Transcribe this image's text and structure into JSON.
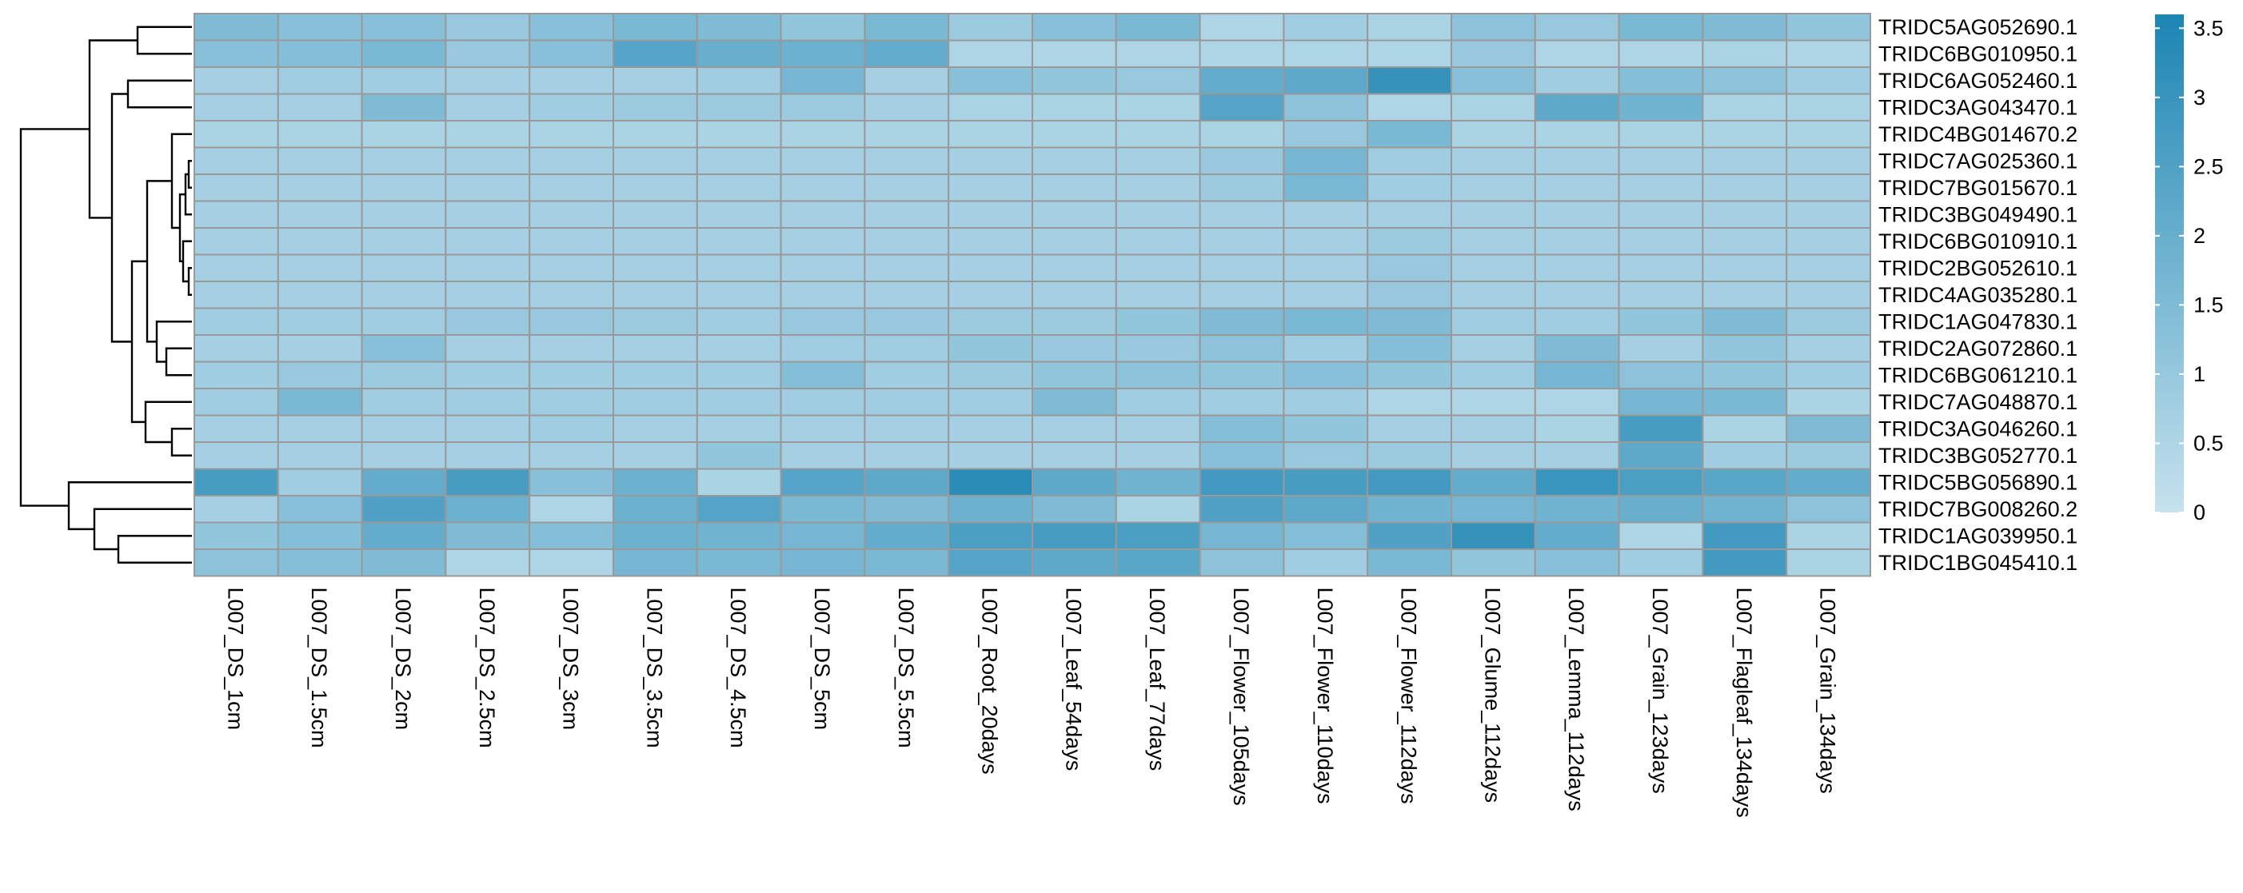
{
  "chart_data": {
    "type": "heatmap",
    "title": "",
    "columns": [
      "L007_DS_1cm",
      "L007_DS_1.5cm",
      "L007_DS_2cm",
      "L007_DS_2.5cm",
      "L007_DS_3cm",
      "L007_DS_3.5cm",
      "L007_DS_4.5cm",
      "L007_DS_5cm",
      "L007_DS_5.5cm",
      "L007_Root_20days",
      "L007_Leaf_54days",
      "L007_Leaf_77days",
      "L007_Flower_105days",
      "L007_Flower_110days",
      "L007_Flower_112days",
      "L007_Glume_112days",
      "L007_Lemma_112days",
      "L007_Grain_123days",
      "L007_Flagleaf_134days",
      "L007_Grain_134days"
    ],
    "rows": [
      "TRIDC5AG052690.1",
      "TRIDC6BG010950.1",
      "TRIDC6AG052460.1",
      "TRIDC3AG043470.1",
      "TRIDC4BG014670.2",
      "TRIDC7AG025360.1",
      "TRIDC7BG015670.1",
      "TRIDC3BG049490.1",
      "TRIDC6BG010910.1",
      "TRIDC2BG052610.1",
      "TRIDC4AG035280.1",
      "TRIDC1AG047830.1",
      "TRIDC2AG072860.1",
      "TRIDC6BG061210.1",
      "TRIDC7AG048870.1",
      "TRIDC3AG046260.1",
      "TRIDC3BG052770.1",
      "TRIDC5BG056890.1",
      "TRIDC7BG008260.2",
      "TRIDC1AG039950.1",
      "TRIDC1BG045410.1"
    ],
    "values": [
      [
        1.5,
        1.3,
        1.3,
        1.0,
        1.3,
        1.6,
        1.5,
        1.1,
        1.6,
        0.9,
        1.3,
        1.6,
        0.5,
        0.8,
        0.6,
        1.2,
        1.0,
        1.6,
        1.5,
        1.1
      ],
      [
        1.3,
        1.4,
        1.6,
        1.0,
        1.3,
        2.4,
        2.0,
        1.9,
        2.1,
        0.5,
        0.5,
        0.5,
        0.5,
        0.5,
        0.5,
        1.0,
        0.5,
        0.5,
        0.6,
        0.5
      ],
      [
        0.7,
        0.8,
        0.8,
        0.7,
        0.7,
        0.7,
        0.8,
        1.7,
        0.7,
        1.3,
        1.1,
        1.0,
        2.1,
        2.2,
        3.1,
        1.3,
        0.8,
        1.4,
        1.2,
        0.8
      ],
      [
        0.7,
        0.7,
        1.5,
        0.7,
        0.8,
        0.9,
        0.9,
        0.9,
        0.7,
        0.6,
        0.6,
        0.6,
        2.4,
        1.2,
        0.5,
        0.6,
        2.2,
        1.8,
        0.6,
        0.6
      ],
      [
        0.6,
        0.6,
        0.6,
        0.6,
        0.6,
        0.6,
        0.6,
        0.6,
        0.6,
        0.6,
        0.6,
        0.6,
        0.6,
        1.0,
        1.6,
        0.6,
        0.6,
        0.6,
        0.6,
        0.6
      ],
      [
        0.7,
        0.7,
        0.7,
        0.7,
        0.7,
        0.7,
        0.7,
        0.7,
        0.7,
        0.7,
        0.7,
        0.7,
        1.0,
        1.7,
        0.8,
        0.7,
        0.7,
        0.7,
        0.7,
        0.7
      ],
      [
        0.7,
        0.7,
        0.7,
        0.7,
        0.7,
        0.7,
        0.7,
        0.7,
        0.7,
        0.7,
        0.7,
        0.7,
        0.9,
        1.6,
        0.8,
        0.7,
        0.7,
        0.7,
        0.7,
        0.7
      ],
      [
        0.7,
        0.7,
        0.7,
        0.7,
        0.7,
        0.7,
        0.7,
        0.7,
        0.7,
        0.7,
        0.7,
        0.7,
        0.7,
        0.7,
        0.7,
        0.7,
        0.7,
        0.7,
        0.7,
        0.7
      ],
      [
        0.7,
        0.7,
        0.7,
        0.7,
        0.7,
        0.7,
        0.7,
        0.7,
        0.7,
        0.7,
        0.7,
        0.7,
        0.7,
        0.7,
        0.9,
        0.7,
        0.7,
        0.7,
        0.7,
        0.7
      ],
      [
        0.7,
        0.7,
        0.7,
        0.7,
        0.7,
        0.7,
        0.7,
        0.7,
        0.7,
        0.7,
        0.7,
        0.7,
        0.7,
        0.7,
        1.0,
        0.7,
        0.7,
        0.7,
        0.7,
        0.7
      ],
      [
        0.7,
        0.7,
        0.7,
        0.7,
        0.7,
        0.7,
        0.7,
        0.7,
        0.7,
        0.7,
        0.7,
        0.7,
        0.7,
        0.7,
        1.0,
        0.7,
        0.7,
        0.7,
        0.7,
        0.7
      ],
      [
        0.8,
        0.8,
        0.8,
        1.0,
        1.0,
        0.9,
        0.8,
        1.0,
        1.0,
        0.9,
        0.9,
        1.1,
        1.5,
        1.6,
        1.5,
        0.8,
        0.8,
        1.1,
        1.5,
        0.9
      ],
      [
        0.7,
        0.7,
        1.3,
        0.7,
        0.7,
        0.7,
        0.7,
        0.8,
        0.8,
        1.1,
        1.0,
        1.0,
        1.2,
        0.8,
        1.4,
        0.7,
        1.5,
        0.7,
        1.1,
        0.7
      ],
      [
        0.8,
        1.0,
        0.9,
        0.8,
        0.8,
        0.8,
        0.8,
        1.4,
        0.8,
        0.9,
        1.1,
        1.2,
        1.1,
        1.3,
        1.1,
        0.8,
        1.7,
        1.2,
        1.1,
        0.8
      ],
      [
        0.8,
        1.6,
        0.8,
        0.8,
        0.8,
        0.8,
        0.8,
        0.8,
        0.8,
        0.8,
        1.5,
        0.8,
        0.8,
        0.8,
        0.5,
        0.5,
        0.5,
        1.7,
        1.6,
        0.6
      ],
      [
        0.7,
        0.7,
        0.7,
        0.7,
        0.8,
        0.7,
        0.7,
        0.7,
        0.7,
        0.7,
        0.7,
        0.7,
        1.4,
        1.1,
        0.7,
        0.7,
        0.6,
        2.7,
        0.6,
        1.5
      ],
      [
        0.7,
        0.7,
        0.7,
        0.7,
        0.7,
        0.7,
        1.1,
        0.7,
        0.7,
        0.7,
        0.7,
        0.7,
        1.3,
        1.0,
        0.9,
        0.7,
        0.7,
        2.2,
        0.8,
        0.9
      ],
      [
        2.7,
        0.8,
        2.1,
        2.7,
        1.3,
        1.9,
        0.6,
        2.4,
        2.2,
        3.3,
        2.2,
        1.8,
        2.8,
        2.7,
        2.8,
        2.1,
        3.0,
        2.6,
        2.3,
        2.1
      ],
      [
        0.7,
        1.3,
        2.5,
        1.9,
        0.5,
        1.9,
        2.4,
        1.6,
        1.5,
        1.9,
        1.5,
        0.6,
        2.5,
        2.2,
        1.8,
        1.7,
        1.8,
        2.0,
        1.8,
        1.2
      ],
      [
        1.1,
        1.4,
        2.1,
        1.5,
        1.4,
        1.9,
        1.8,
        1.7,
        2.1,
        2.6,
        2.7,
        2.6,
        1.7,
        1.4,
        2.5,
        3.1,
        2.1,
        0.5,
        2.8,
        0.6
      ],
      [
        1.2,
        1.4,
        1.5,
        0.5,
        0.5,
        1.7,
        1.6,
        1.7,
        1.6,
        2.4,
        2.2,
        2.3,
        1.2,
        0.8,
        1.6,
        1.1,
        1.3,
        0.8,
        2.8,
        0.6
      ]
    ],
    "color_scale": {
      "min": 0,
      "max": 3.6,
      "low": "#c6e2ee",
      "high": "#1c85b3"
    },
    "legend": {
      "ticks": [
        "0",
        "0.5",
        "1",
        "1.5",
        "2",
        "2.5",
        "3",
        "3.5"
      ],
      "placement": "right"
    },
    "cell_border_color": "#999999",
    "row_dendrogram": true
  }
}
